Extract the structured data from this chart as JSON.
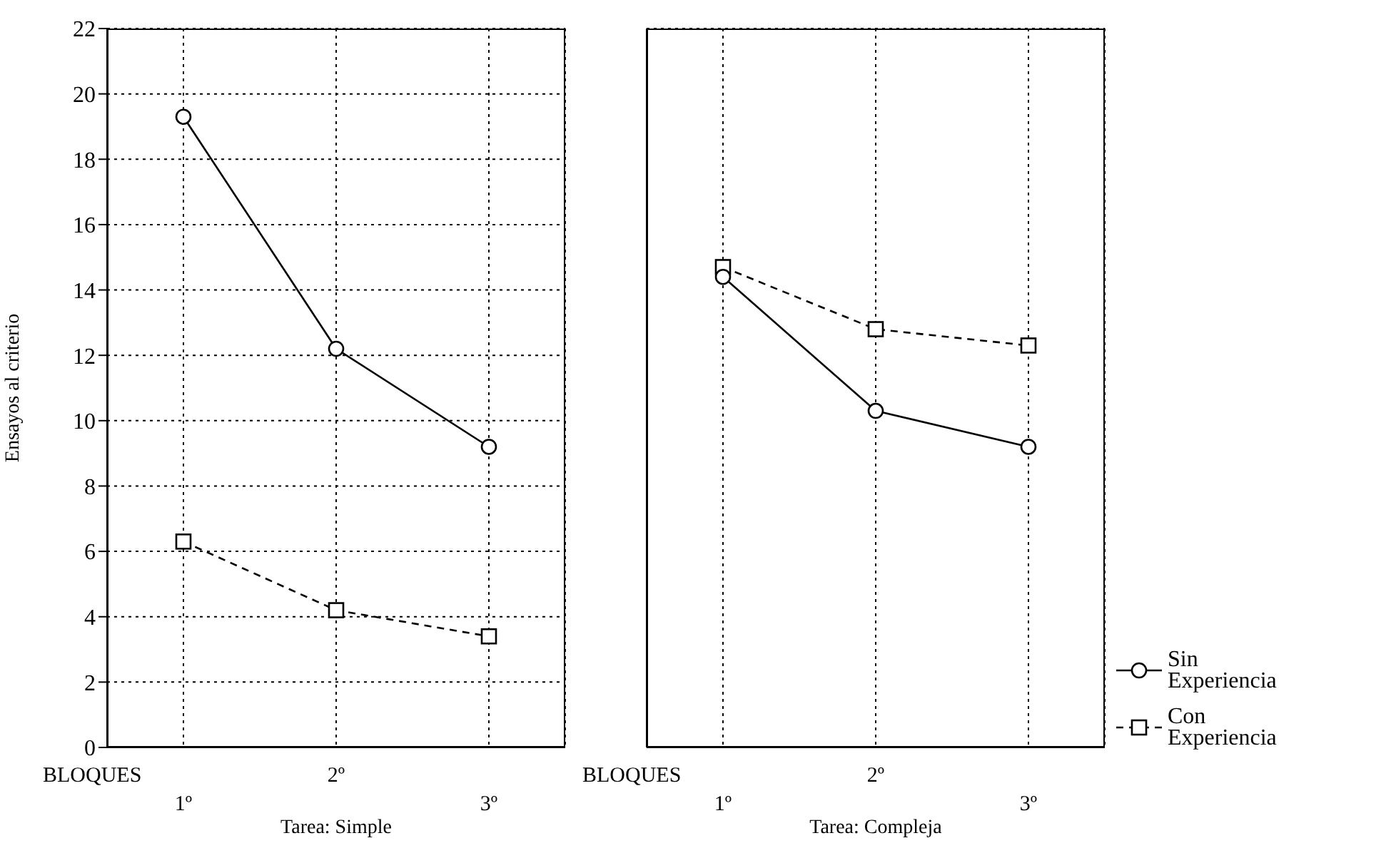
{
  "chart_data": [
    {
      "type": "line",
      "xlabel": "Tarea: Simple",
      "ylabel": "Ensayos al criterio",
      "categories": [
        "1º",
        "2º",
        "3º"
      ],
      "ylim": [
        0,
        22
      ],
      "yticks": [
        0,
        2,
        4,
        6,
        8,
        10,
        12,
        14,
        16,
        18,
        20,
        22
      ],
      "grid": true,
      "legend": false,
      "annotations": [
        "BLOQUES"
      ],
      "series": [
        {
          "color": "#000000",
          "marker": "circle",
          "line_style": "solid",
          "values": [
            19.3,
            12.2,
            9.2
          ]
        },
        {
          "color": "#000000",
          "marker": "square",
          "line_style": "dashed",
          "values": [
            6.3,
            4.2,
            3.4
          ]
        }
      ]
    },
    {
      "type": "line",
      "xlabel": "Tarea: Compleja",
      "categories": [
        "1º",
        "2º",
        "3º"
      ],
      "ylim": [
        0,
        22
      ],
      "yticks": [
        0,
        2,
        4,
        6,
        8,
        10,
        12,
        14,
        16,
        18,
        20,
        22
      ],
      "grid": true,
      "legend": "bottom right",
      "tick_labels": "x",
      "annotations": [
        "BLOQUES"
      ],
      "series": [
        {
          "name": "Sin Experiencia",
          "color": "#000000",
          "marker": "circle",
          "line_style": "solid",
          "values": [
            14.4,
            10.3,
            9.2
          ]
        },
        {
          "name": "Con Experiencia",
          "color": "#000000",
          "marker": "square",
          "line_style": "dashed",
          "values": [
            14.7,
            12.8,
            12.3
          ]
        }
      ]
    }
  ]
}
